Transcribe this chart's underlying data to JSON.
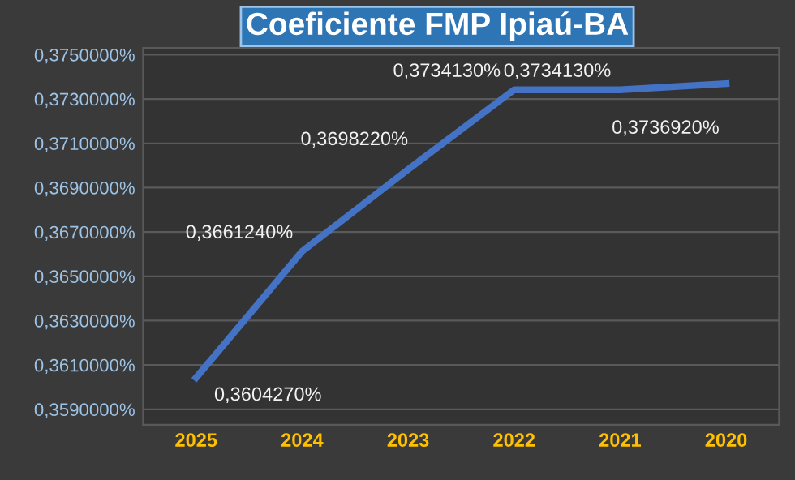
{
  "chart_data": {
    "type": "line",
    "title": "Coeficiente FMP Ipiaú-BA",
    "categories": [
      "2025",
      "2024",
      "2023",
      "2022",
      "2021",
      "2020"
    ],
    "series": [
      {
        "color": "#4472c4",
        "values": [
          0.360427,
          0.366124,
          0.369822,
          0.373413,
          0.373413,
          0.373692
        ],
        "value_labels": [
          "0,3604270%",
          "0,3661240%",
          "0,3698220%",
          "0,3734130%",
          "0,3734130%",
          "0,3736920%"
        ]
      }
    ],
    "ylim": [
      0.3583,
      0.3753
    ],
    "yticks": [
      {
        "value": 0.359,
        "label": "0,3590000%"
      },
      {
        "value": 0.361,
        "label": "0,3610000%"
      },
      {
        "value": 0.363,
        "label": "0,3630000%"
      },
      {
        "value": 0.365,
        "label": "0,3650000%"
      },
      {
        "value": 0.367,
        "label": "0,3670000%"
      },
      {
        "value": 0.369,
        "label": "0,3690000%"
      },
      {
        "value": 0.371,
        "label": "0,3710000%"
      },
      {
        "value": 0.373,
        "label": "0,3730000%"
      },
      {
        "value": 0.375,
        "label": "0,3750000%"
      }
    ],
    "grid": "y",
    "legend": false,
    "marker": "none",
    "line_style": "solid"
  }
}
